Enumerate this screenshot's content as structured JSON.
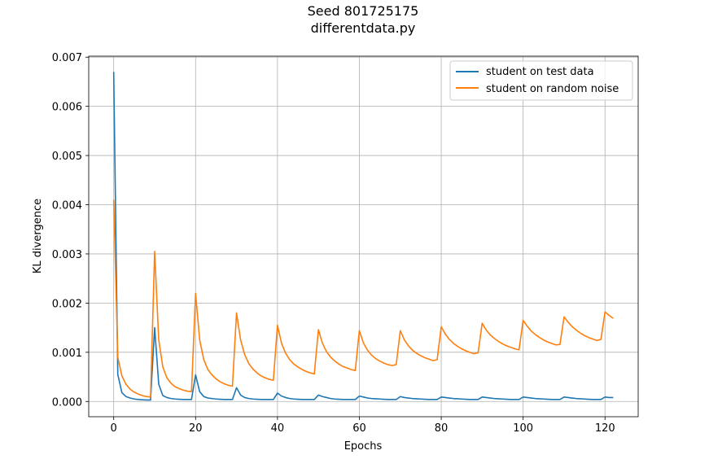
{
  "chart_data": {
    "type": "line",
    "title": "Seed 801725175",
    "subtitle": "differentdata.py",
    "xlabel": "Epochs",
    "ylabel": "KL divergence",
    "xlim": [
      -6.1,
      128.1
    ],
    "ylim": [
      -0.00031,
      0.00702
    ],
    "xticks": [
      0,
      20,
      40,
      60,
      80,
      100,
      120
    ],
    "xtick_labels": [
      "0",
      "20",
      "40",
      "60",
      "80",
      "100",
      "120"
    ],
    "yticks": [
      0,
      0.001,
      0.002,
      0.003,
      0.004,
      0.005,
      0.006,
      0.007
    ],
    "ytick_labels": [
      "0.000",
      "0.001",
      "0.002",
      "0.003",
      "0.004",
      "0.005",
      "0.006",
      "0.007"
    ],
    "grid": true,
    "legend_position": "upper right",
    "series": [
      {
        "name": "student on test data",
        "color": "#1f77b4",
        "x": [
          0,
          1,
          2,
          3,
          4,
          5,
          6,
          7,
          8,
          9,
          10,
          11,
          12,
          13,
          14,
          15,
          16,
          17,
          18,
          19,
          20,
          21,
          22,
          23,
          24,
          25,
          26,
          27,
          28,
          29,
          30,
          31,
          32,
          33,
          34,
          35,
          36,
          37,
          38,
          39,
          40,
          41,
          42,
          43,
          44,
          45,
          46,
          47,
          48,
          49,
          50,
          51,
          52,
          53,
          54,
          55,
          56,
          57,
          58,
          59,
          60,
          61,
          62,
          63,
          64,
          65,
          66,
          67,
          68,
          69,
          70,
          71,
          72,
          73,
          74,
          75,
          76,
          77,
          78,
          79,
          80,
          81,
          82,
          83,
          84,
          85,
          86,
          87,
          88,
          89,
          90,
          91,
          92,
          93,
          94,
          95,
          96,
          97,
          98,
          99,
          100,
          101,
          102,
          103,
          104,
          105,
          106,
          107,
          108,
          109,
          110,
          111,
          112,
          113,
          114,
          115,
          116,
          117,
          118,
          119,
          120,
          121,
          122
        ],
        "y": [
          0.0067,
          0.00055,
          0.00018,
          0.0001,
          7e-05,
          5e-05,
          4e-05,
          3.5e-05,
          3e-05,
          3e-05,
          0.0015,
          0.00035,
          0.00012,
          8e-05,
          6e-05,
          5e-05,
          4.5e-05,
          4e-05,
          4e-05,
          4e-05,
          0.00054,
          0.0002,
          0.0001,
          7e-05,
          6e-05,
          5e-05,
          4.5e-05,
          4e-05,
          4e-05,
          4e-05,
          0.00028,
          0.00013,
          8e-05,
          6e-05,
          5e-05,
          4.5e-05,
          4e-05,
          4e-05,
          4e-05,
          4e-05,
          0.00017,
          0.00011,
          8e-05,
          6e-05,
          5e-05,
          4.5e-05,
          4e-05,
          4e-05,
          4e-05,
          4e-05,
          0.00013,
          0.0001,
          8e-05,
          6e-05,
          5e-05,
          4.5e-05,
          4e-05,
          4e-05,
          4e-05,
          4e-05,
          0.00011,
          9e-05,
          7e-05,
          6e-05,
          5.5e-05,
          5e-05,
          4.5e-05,
          4e-05,
          4e-05,
          4e-05,
          0.0001,
          8e-05,
          7e-05,
          6e-05,
          5.5e-05,
          5e-05,
          4.5e-05,
          4e-05,
          4e-05,
          4e-05,
          9e-05,
          8e-05,
          7e-05,
          6e-05,
          5.5e-05,
          5e-05,
          4.5e-05,
          4e-05,
          4e-05,
          4e-05,
          9e-05,
          8e-05,
          7e-05,
          6e-05,
          5.5e-05,
          5e-05,
          4.5e-05,
          4e-05,
          4e-05,
          4e-05,
          9e-05,
          8e-05,
          7e-05,
          6e-05,
          5.5e-05,
          5e-05,
          4.5e-05,
          4e-05,
          4e-05,
          4e-05,
          9e-05,
          8e-05,
          7e-05,
          6e-05,
          5.5e-05,
          5e-05,
          4.5e-05,
          4e-05,
          4e-05,
          4e-05,
          9e-05,
          8e-05,
          8e-05
        ]
      },
      {
        "name": "student on random noise",
        "color": "#ff7f0e",
        "x": [
          0,
          1,
          2,
          3,
          4,
          5,
          6,
          7,
          8,
          9,
          10,
          11,
          12,
          13,
          14,
          15,
          16,
          17,
          18,
          19,
          20,
          21,
          22,
          23,
          24,
          25,
          26,
          27,
          28,
          29,
          30,
          31,
          32,
          33,
          34,
          35,
          36,
          37,
          38,
          39,
          40,
          41,
          42,
          43,
          44,
          45,
          46,
          47,
          48,
          49,
          50,
          51,
          52,
          53,
          54,
          55,
          56,
          57,
          58,
          59,
          60,
          61,
          62,
          63,
          64,
          65,
          66,
          67,
          68,
          69,
          70,
          71,
          72,
          73,
          74,
          75,
          76,
          77,
          78,
          79,
          80,
          81,
          82,
          83,
          84,
          85,
          86,
          87,
          88,
          89,
          90,
          91,
          92,
          93,
          94,
          95,
          96,
          97,
          98,
          99,
          100,
          101,
          102,
          103,
          104,
          105,
          106,
          107,
          108,
          109,
          110,
          111,
          112,
          113,
          114,
          115,
          116,
          117,
          118,
          119,
          120,
          121,
          122
        ],
        "y": [
          0.0041,
          0.0009,
          0.00052,
          0.00035,
          0.00025,
          0.00019,
          0.00015,
          0.00012,
          0.0001,
          9e-05,
          0.00305,
          0.00125,
          0.0007,
          0.00048,
          0.00037,
          0.0003,
          0.00026,
          0.00023,
          0.00021,
          0.0002,
          0.0022,
          0.00125,
          0.00085,
          0.00065,
          0.00054,
          0.00046,
          0.0004,
          0.00036,
          0.00033,
          0.00031,
          0.0018,
          0.00125,
          0.00095,
          0.00077,
          0.00066,
          0.00058,
          0.00052,
          0.00048,
          0.00045,
          0.00043,
          0.00155,
          0.00118,
          0.00098,
          0.00085,
          0.00076,
          0.0007,
          0.00065,
          0.00061,
          0.00058,
          0.00056,
          0.00146,
          0.00118,
          0.00101,
          0.0009,
          0.00082,
          0.00076,
          0.00071,
          0.00068,
          0.00065,
          0.00063,
          0.00144,
          0.00119,
          0.00104,
          0.00094,
          0.00087,
          0.00082,
          0.00078,
          0.00075,
          0.00073,
          0.00075,
          0.00144,
          0.00125,
          0.00113,
          0.00104,
          0.00098,
          0.00093,
          0.00089,
          0.00086,
          0.00083,
          0.00085,
          0.00152,
          0.00137,
          0.00126,
          0.00118,
          0.00112,
          0.00107,
          0.00103,
          0.001,
          0.00097,
          0.00099,
          0.00159,
          0.00145,
          0.00135,
          0.00128,
          0.00122,
          0.00117,
          0.00113,
          0.0011,
          0.00107,
          0.00105,
          0.00165,
          0.00153,
          0.00143,
          0.00136,
          0.0013,
          0.00125,
          0.00121,
          0.00118,
          0.00115,
          0.00116,
          0.00172,
          0.00161,
          0.00152,
          0.00145,
          0.00139,
          0.00134,
          0.0013,
          0.00127,
          0.00124,
          0.00126,
          0.00182,
          0.00175,
          0.00169
        ]
      }
    ]
  }
}
